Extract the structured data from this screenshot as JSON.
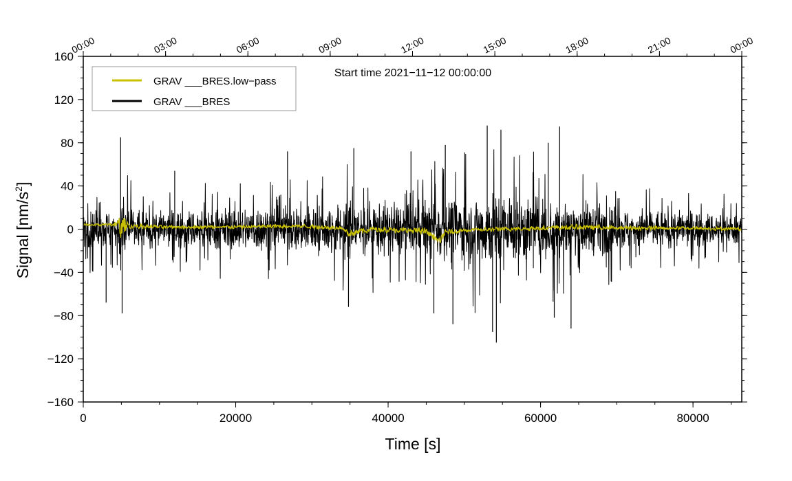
{
  "chart_data": {
    "type": "line",
    "title": "",
    "annotation": "Start time 2021−11−12 00:00:00",
    "xlabel": "Time [s]",
    "ylabel_main": "Signal [nm/s",
    "ylabel_sup": "2",
    "ylabel_end": "]",
    "xlim": [
      0,
      86400
    ],
    "ylim": [
      -160,
      160
    ],
    "x_ticks": [
      {
        "value": 0,
        "label": "0"
      },
      {
        "value": 20000,
        "label": "20000"
      },
      {
        "value": 40000,
        "label": "40000"
      },
      {
        "value": 60000,
        "label": "60000"
      },
      {
        "value": 80000,
        "label": "80000"
      }
    ],
    "x_minor_step": 5000,
    "y_ticks": [
      {
        "value": 160,
        "label": "160"
      },
      {
        "value": 120,
        "label": "120"
      },
      {
        "value": 80,
        "label": "80"
      },
      {
        "value": 40,
        "label": "40"
      },
      {
        "value": 0,
        "label": "0"
      },
      {
        "value": -40,
        "label": "−40"
      },
      {
        "value": -80,
        "label": "−80"
      },
      {
        "value": -120,
        "label": "−120"
      },
      {
        "value": -160,
        "label": "−160"
      }
    ],
    "y_minor_step": 10,
    "top_ticks": [
      {
        "value": 0,
        "label": "00:00"
      },
      {
        "value": 10800,
        "label": "03:00"
      },
      {
        "value": 21600,
        "label": "06:00"
      },
      {
        "value": 32400,
        "label": "09:00"
      },
      {
        "value": 43200,
        "label": "12:00"
      },
      {
        "value": 54000,
        "label": "15:00"
      },
      {
        "value": 64800,
        "label": "18:00"
      },
      {
        "value": 75600,
        "label": "21:00"
      },
      {
        "value": 86400,
        "label": "00:00"
      }
    ],
    "top_minor_step": 3600,
    "legend_position": "top-left",
    "series": [
      {
        "name": "GRAV ___BRES.low−pass",
        "color": "#c8c000",
        "style": "low-pass",
        "envelope": {
          "x": [
            0,
            3000,
            4500,
            4900,
            5200,
            6000,
            10000,
            20000,
            28000,
            34000,
            34800,
            38000,
            42000,
            45000,
            46200,
            46800,
            47500,
            50000,
            60000,
            66000,
            70000,
            80000,
            86400
          ],
          "center": [
            4,
            4,
            5,
            2,
            4,
            3,
            2,
            2,
            3,
            1,
            -4,
            0,
            -1,
            -2,
            -8,
            -11,
            -3,
            -1,
            1,
            2,
            1,
            1,
            0
          ],
          "amplitude": [
            1.5,
            1.5,
            4,
            14,
            8,
            3,
            2,
            2,
            2.5,
            2.5,
            4,
            3,
            3,
            3.5,
            4,
            4,
            3,
            2.5,
            2.5,
            3,
            2.5,
            2,
            2
          ]
        }
      },
      {
        "name": "GRAV ___BRES",
        "color": "#000000",
        "style": "raw",
        "envelope": {
          "x": [
            0,
            4000,
            5000,
            6500,
            10000,
            20000,
            30000,
            35000,
            40000,
            45000,
            50000,
            53000,
            54500,
            58000,
            62000,
            67000,
            72000,
            80000,
            86400
          ],
          "amplitude": [
            14,
            16,
            26,
            17,
            14,
            17,
            19,
            22,
            21,
            22,
            26,
            30,
            30,
            27,
            24,
            20,
            16,
            14,
            11
          ],
          "spikes": [
            {
              "x": 3000,
              "value": -68
            },
            {
              "x": 4900,
              "value": 85
            },
            {
              "x": 5100,
              "value": -78
            },
            {
              "x": 12000,
              "value": 54
            },
            {
              "x": 26800,
              "value": 72
            },
            {
              "x": 34800,
              "value": -72
            },
            {
              "x": 35500,
              "value": 75
            },
            {
              "x": 43000,
              "value": 72
            },
            {
              "x": 46000,
              "value": -78
            },
            {
              "x": 47500,
              "value": 78
            },
            {
              "x": 48500,
              "value": -88
            },
            {
              "x": 53000,
              "value": 96
            },
            {
              "x": 53700,
              "value": -95
            },
            {
              "x": 54200,
              "value": -105
            },
            {
              "x": 54800,
              "value": 92
            },
            {
              "x": 61000,
              "value": 80
            },
            {
              "x": 61800,
              "value": -82
            },
            {
              "x": 62500,
              "value": 95
            },
            {
              "x": 64000,
              "value": -92
            }
          ]
        }
      }
    ]
  }
}
